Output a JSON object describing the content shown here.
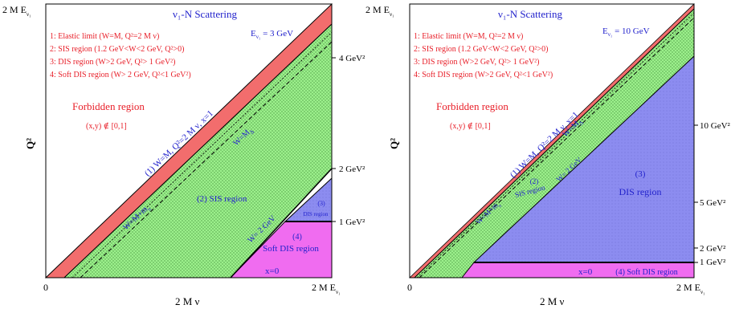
{
  "panels": [
    {
      "title": "ν₁-N Scattering",
      "energy": "E",
      "energy_sub": "ν₁",
      "energy_value": " = 3 GeV",
      "legend": [
        "1: Elastic limit (W=M, Q²=2 M ν)",
        "2: SIS region (1.2 GeV<W<2 GeV, Q²>0)",
        "3: DIS region (W>2 GeV, Q²> 1 GeV²)",
        "4: Soft DIS region (W> 2 GeV, Q²<1 GeV²)"
      ],
      "forbidden": "Forbidden region",
      "xy_range": "(x,y) ∉ [0,1]",
      "labels": {
        "elastic": "(1) W=M, Q²=2 M ν, x=1",
        "w_mdelta": "W=M",
        "w_mdelta_sub": "Δ",
        "w_mmpi": "W=M+m",
        "w_mmpi_sub": "π",
        "sis": "(2) SIS region",
        "w2": "W= 2 GeV",
        "dis_num": "(3)",
        "dis": "DIS region",
        "soft_num": "(4)",
        "soft": "Soft DIS region",
        "x0": "x=0"
      },
      "y_axis_top": "2 M E",
      "y_axis_top_sub": "ν₁",
      "y_axis_label": "Q²",
      "x_axis_origin": "0",
      "x_axis_label": "2 M ν",
      "x_axis_end": "2 M E",
      "x_axis_end_sub": "ν₁",
      "right_ticks": [
        "4 GeV²",
        "2 GeV²",
        "1 GeV²"
      ],
      "right_tick_values": [
        4,
        2,
        1
      ]
    },
    {
      "title": "ν₁-N Scattering",
      "energy": "E",
      "energy_sub": "ν₁",
      "energy_value": " = 10 GeV",
      "legend": [
        "1: Elastic limit (W=M, Q²=2 M ν)",
        "2: SIS region (1.2 GeV<W<2 GeV, Q²>0)",
        "3: DIS region (W>2 GeV, Q²> 1 GeV²)",
        "4: Soft DIS region (W>2 GeV, Q²<1 GeV²)"
      ],
      "forbidden": "Forbidden region",
      "xy_range": "(x,y) ∉ [0,1]",
      "labels": {
        "elastic": "(1) W=M, Q²=2 M ν, x=1",
        "w_mdelta": "W=M",
        "w_mdelta_sub": "Δ",
        "w_mmpi": "W=M+m",
        "w_mmpi_sub": "π",
        "sis_num": "(2)",
        "sis": "SIS region",
        "w2": "W= 2 GeV",
        "dis_num": "(3)",
        "dis": "DIS region",
        "soft": "(4)  Soft DIS region",
        "x0": "x=0"
      },
      "y_axis_top": "2 M E",
      "y_axis_top_sub": "ν₁",
      "y_axis_label": "Q²",
      "x_axis_origin": "0",
      "x_axis_label": "2 M ν",
      "x_axis_end": "2 M E",
      "x_axis_end_sub": "ν₁",
      "right_ticks": [
        "10 GeV²",
        "5 GeV²",
        "2 GeV²",
        "1 GeV²"
      ],
      "right_tick_values": [
        10,
        5,
        2,
        1
      ]
    }
  ],
  "colors": {
    "elastic": "#f26d6d",
    "sis": "#9cf08c",
    "dis": "#8c8cf0",
    "soft": "#f06cf0",
    "red_text": "#e8202a",
    "blue_text": "#2222cc"
  }
}
